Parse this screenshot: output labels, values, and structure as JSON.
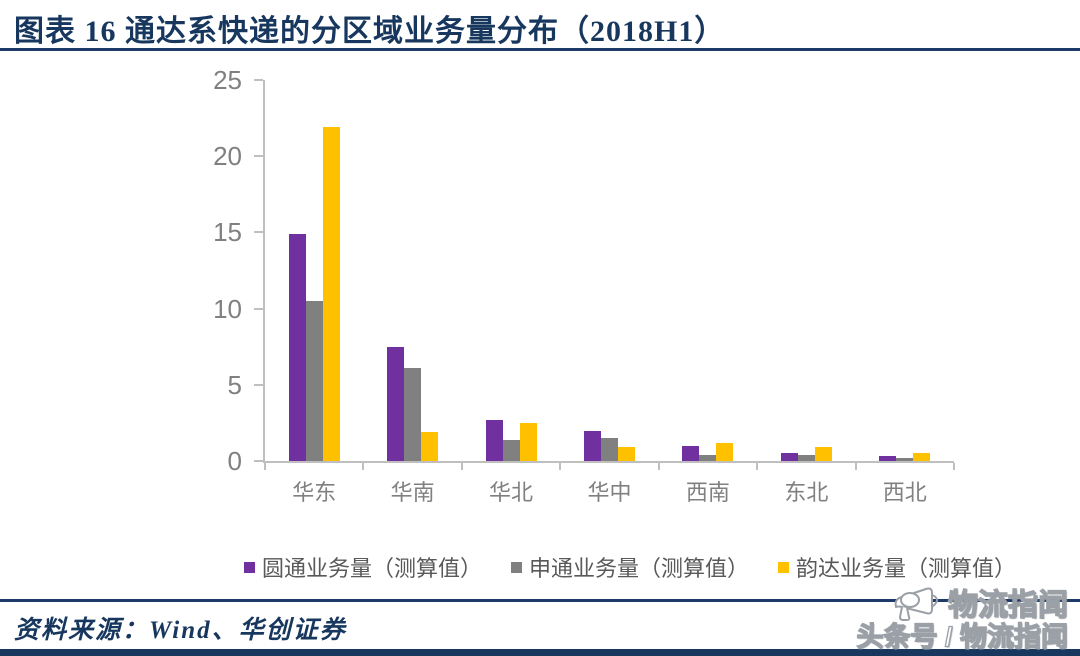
{
  "header": {
    "title": "图表 16  通达系快递的分区域业务量分布（2018H1）"
  },
  "chart_data": {
    "type": "bar",
    "title": "通达系快递的分区域业务量分布（2018H1）",
    "categories": [
      "华东",
      "华南",
      "华北",
      "华中",
      "西南",
      "东北",
      "西北"
    ],
    "series": [
      {
        "name": "圆通业务量（测算值）",
        "color": "#7030A0",
        "values": [
          14.9,
          7.5,
          2.7,
          2.0,
          1.0,
          0.5,
          0.3
        ]
      },
      {
        "name": "申通业务量（测算值）",
        "color": "#808080",
        "values": [
          10.5,
          6.1,
          1.4,
          1.5,
          0.4,
          0.4,
          0.2
        ]
      },
      {
        "name": "韵达业务量（测算值）",
        "color": "#FFC000",
        "values": [
          21.9,
          1.9,
          2.5,
          0.9,
          1.2,
          0.9,
          0.5
        ]
      }
    ],
    "xlabel": "",
    "ylabel": "",
    "ylim": [
      0,
      25
    ],
    "yticks": [
      0,
      5,
      10,
      15,
      20,
      25
    ],
    "grid": false,
    "legend_position": "bottom"
  },
  "footer": {
    "source_label": "资料来源：Wind、华创证券"
  },
  "watermark": {
    "logo_icon": "megaphone-icon",
    "brand": "物流指闻",
    "line2": "头条号 / 物流指闻"
  },
  "colors": {
    "accent_navy": "#17375E",
    "axis_gray": "#BFBFBF",
    "tick_label_gray": "#808080",
    "legend_text_gray": "#595959"
  }
}
